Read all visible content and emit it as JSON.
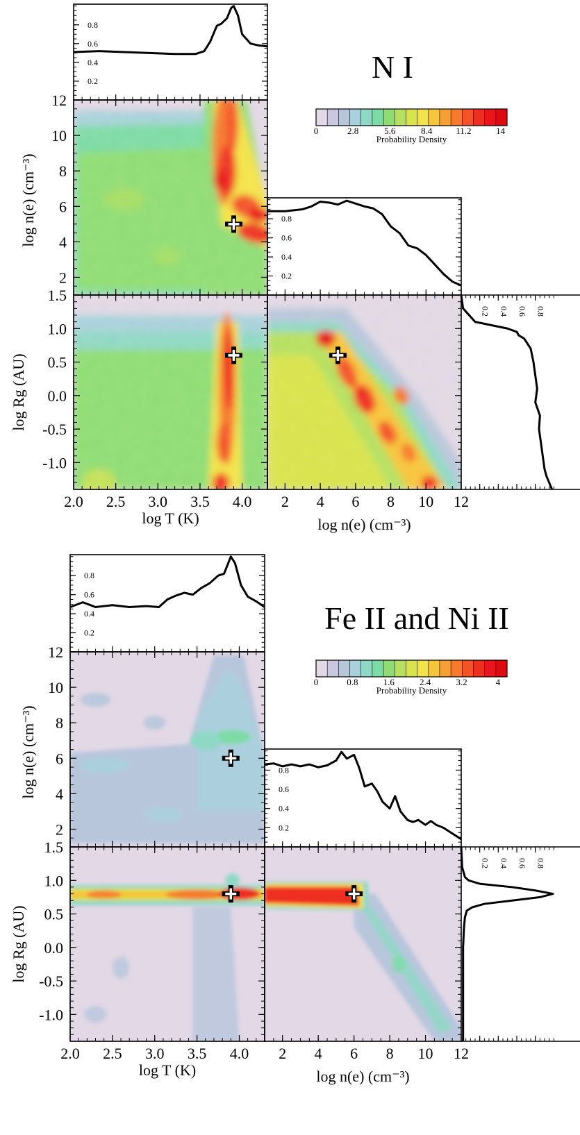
{
  "chart_data": [
    {
      "type": "heatmap",
      "title": "N I",
      "colorbar": {
        "label": "Probability Density",
        "ticks": [
          "0",
          "2.8",
          "5.6",
          "8.4",
          "11.2",
          "14"
        ],
        "range": [
          0,
          14.5
        ]
      },
      "axes": {
        "logT": {
          "label": "log T (K)",
          "ticks": [
            "2.0",
            "2.5",
            "3.0",
            "3.5",
            "4.0"
          ],
          "range": [
            2.0,
            4.3
          ]
        },
        "logNe": {
          "label": "log n(e) (cm⁻³)",
          "ticks": [
            "2",
            "4",
            "6",
            "8",
            "10",
            "12"
          ],
          "range": [
            1.0,
            12.0
          ]
        },
        "logRg": {
          "label": "log Rg (AU)",
          "ticks": [
            "1.5",
            "1.0",
            "0.5",
            "0.0",
            "-0.5",
            "-1.0"
          ],
          "range": [
            -1.4,
            1.5
          ]
        }
      },
      "marginal_ticks": [
        "0.8",
        "0.6",
        "0.4",
        "0.2"
      ],
      "marginal_range": [
        0,
        1
      ],
      "best_fit": {
        "logT": 3.9,
        "logNe": 5.0,
        "logRg": 0.6
      },
      "marginal_T": {
        "x": [
          2.0,
          2.3,
          2.6,
          2.9,
          3.2,
          3.45,
          3.55,
          3.62,
          3.7,
          3.75,
          3.82,
          3.87,
          3.9,
          3.95,
          4.0,
          4.1,
          4.2,
          4.3
        ],
        "y": [
          0.51,
          0.52,
          0.51,
          0.5,
          0.49,
          0.49,
          0.52,
          0.62,
          0.79,
          0.81,
          0.87,
          0.98,
          1.0,
          0.9,
          0.7,
          0.6,
          0.58,
          0.57
        ]
      },
      "marginal_Ne": {
        "x": [
          1.0,
          2.0,
          3.0,
          3.5,
          4.0,
          4.5,
          5.0,
          5.5,
          6.0,
          6.5,
          7.0,
          7.5,
          8.0,
          8.5,
          9.0,
          9.5,
          10.0,
          10.5,
          11.0,
          11.5,
          12.0
        ],
        "y": [
          0.88,
          0.88,
          0.9,
          0.93,
          0.98,
          0.97,
          0.95,
          0.99,
          0.96,
          0.93,
          0.91,
          0.85,
          0.72,
          0.65,
          0.52,
          0.49,
          0.42,
          0.32,
          0.22,
          0.14,
          0.1
        ]
      },
      "marginal_Rg": {
        "x": [
          1.5,
          1.3,
          1.1,
          1.0,
          0.95,
          0.9,
          0.85,
          0.7,
          0.5,
          0.3,
          0.1,
          -0.1,
          -0.3,
          -0.5,
          -0.7,
          -0.9,
          -1.1,
          -1.2,
          -1.3,
          -1.4
        ],
        "y": [
          0.0,
          0.02,
          0.15,
          0.5,
          0.6,
          0.62,
          0.68,
          0.75,
          0.78,
          0.8,
          0.82,
          0.8,
          0.85,
          0.84,
          0.86,
          0.88,
          0.9,
          0.92,
          0.95,
          0.98
        ]
      }
    },
    {
      "type": "heatmap",
      "title": "Fe II and Ni II",
      "colorbar": {
        "label": "Probability Density",
        "ticks": [
          "0",
          "0.8",
          "1.6",
          "2.4",
          "3.2",
          "4"
        ],
        "range": [
          0,
          4.2
        ]
      },
      "axes": {
        "logT": {
          "label": "log T (K)",
          "ticks": [
            "2.0",
            "2.5",
            "3.0",
            "3.5",
            "4.0"
          ],
          "range": [
            2.0,
            4.3
          ]
        },
        "logNe": {
          "label": "log n(e) (cm⁻³)",
          "ticks": [
            "2",
            "4",
            "6",
            "8",
            "10",
            "12"
          ],
          "range": [
            1.0,
            12.0
          ]
        },
        "logRg": {
          "label": "log Rg (AU)",
          "ticks": [
            "1.5",
            "1.0",
            "0.5",
            "0.0",
            "-0.5",
            "-1.0"
          ],
          "range": [
            -1.4,
            1.5
          ]
        }
      },
      "marginal_ticks": [
        "0.8",
        "0.6",
        "0.4",
        "0.2"
      ],
      "marginal_range": [
        0,
        1
      ],
      "best_fit": {
        "logT": 3.9,
        "logNe": 6.0,
        "logRg": 0.8
      },
      "marginal_T": {
        "x": [
          2.0,
          2.15,
          2.3,
          2.5,
          2.7,
          2.9,
          3.05,
          3.15,
          3.25,
          3.35,
          3.45,
          3.55,
          3.65,
          3.75,
          3.82,
          3.9,
          3.95,
          4.02,
          4.1,
          4.2,
          4.3
        ],
        "y": [
          0.47,
          0.52,
          0.47,
          0.49,
          0.47,
          0.48,
          0.47,
          0.55,
          0.59,
          0.62,
          0.6,
          0.67,
          0.72,
          0.8,
          0.82,
          1.0,
          0.93,
          0.7,
          0.58,
          0.53,
          0.47
        ]
      },
      "marginal_Ne": {
        "x": [
          1.0,
          1.5,
          2.0,
          2.5,
          3.0,
          3.5,
          4.0,
          4.5,
          5.0,
          5.3,
          5.6,
          6.0,
          6.3,
          6.6,
          7.0,
          7.3,
          7.6,
          8.0,
          8.3,
          8.6,
          9.0,
          9.3,
          9.6,
          10.0,
          10.3,
          10.6,
          11.0,
          11.5,
          12.0
        ],
        "y": [
          0.86,
          0.87,
          0.84,
          0.86,
          0.84,
          0.86,
          0.83,
          0.85,
          0.9,
          0.99,
          0.92,
          0.96,
          0.82,
          0.63,
          0.66,
          0.58,
          0.47,
          0.4,
          0.53,
          0.37,
          0.28,
          0.26,
          0.28,
          0.23,
          0.27,
          0.23,
          0.2,
          0.14,
          0.08
        ]
      },
      "marginal_Rg": {
        "x": [
          1.5,
          1.2,
          1.05,
          1.0,
          0.95,
          0.9,
          0.85,
          0.8,
          0.75,
          0.7,
          0.65,
          0.6,
          0.55,
          0.45,
          0.3,
          0.0,
          -0.5,
          -1.0,
          -1.4
        ],
        "y": [
          0.0,
          0.01,
          0.04,
          0.08,
          0.2,
          0.55,
          0.8,
          0.99,
          0.85,
          0.55,
          0.25,
          0.12,
          0.06,
          0.04,
          0.03,
          0.02,
          0.02,
          0.02,
          0.02
        ]
      }
    }
  ]
}
